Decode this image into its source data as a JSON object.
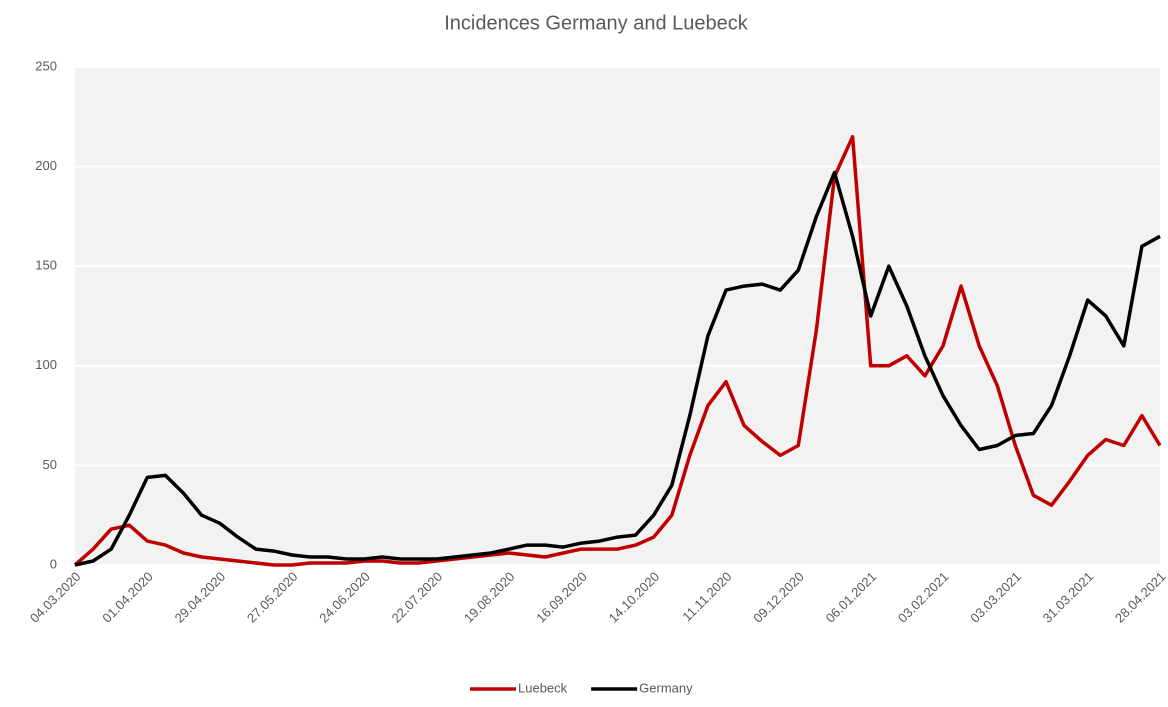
{
  "chart_data": {
    "type": "line",
    "title": "Incidences Germany and Luebeck",
    "categories": [
      "04.03.2020",
      null,
      null,
      null,
      "01.04.2020",
      null,
      null,
      null,
      "29.04.2020",
      null,
      null,
      null,
      "27.05.2020",
      null,
      null,
      null,
      "24.06.2020",
      null,
      null,
      null,
      "22.07.2020",
      null,
      null,
      null,
      "19.08.2020",
      null,
      null,
      null,
      "16.09.2020",
      null,
      null,
      null,
      "14.10.2020",
      null,
      null,
      null,
      "11.11.2020",
      null,
      null,
      null,
      "09.12.2020",
      null,
      null,
      null,
      "06.01.2021",
      null,
      null,
      null,
      "03.02.2021",
      null,
      null,
      null,
      "03.03.2021",
      null,
      null,
      null,
      "31.03.2021",
      null,
      null,
      null,
      "28.04.2021"
    ],
    "series": [
      {
        "name": "Luebeck",
        "color": "#c00000",
        "values": [
          0,
          8,
          18,
          20,
          12,
          10,
          6,
          4,
          3,
          2,
          1,
          0,
          0,
          1,
          1,
          1,
          2,
          2,
          1,
          1,
          2,
          3,
          4,
          5,
          6,
          5,
          4,
          6,
          8,
          8,
          8,
          10,
          14,
          25,
          55,
          80,
          92,
          70,
          62,
          55,
          60,
          118,
          195,
          215,
          100,
          100,
          105,
          95,
          110,
          140,
          110,
          90,
          60,
          35,
          30,
          42,
          55,
          63,
          60,
          75,
          60
        ]
      },
      {
        "name": "Germany",
        "color": "#000000",
        "values": [
          0,
          2,
          8,
          25,
          44,
          45,
          36,
          25,
          21,
          14,
          8,
          7,
          5,
          4,
          4,
          3,
          3,
          4,
          3,
          3,
          3,
          4,
          5,
          6,
          8,
          10,
          10,
          9,
          11,
          12,
          14,
          15,
          25,
          40,
          75,
          115,
          138,
          140,
          141,
          138,
          148,
          175,
          197,
          165,
          125,
          150,
          130,
          105,
          85,
          70,
          58,
          60,
          65,
          66,
          80,
          105,
          133,
          125,
          110,
          160,
          165
        ]
      }
    ],
    "ylim": [
      0,
      250
    ],
    "yticks": [
      0,
      50,
      100,
      150,
      200,
      250
    ],
    "grid": true,
    "legend": "bottom"
  }
}
